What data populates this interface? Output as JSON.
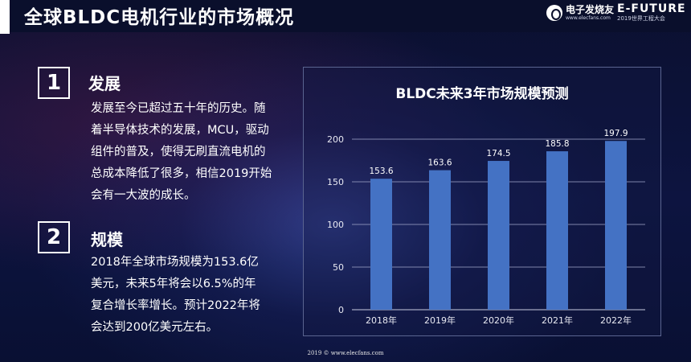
{
  "header": {
    "title": "全球BLDC电机行业的市场概况",
    "logo_left_cn": "电子发烧友",
    "logo_left_en": "www.elecfans.com",
    "logo_right_main": "E-FUTURE",
    "logo_right_sub": "2019世界工程大会"
  },
  "sections": [
    {
      "number": "1",
      "title": "发展",
      "lines": [
        "发展至今已超过五十年的历史。随",
        "着半导体技术的发展，MCU，驱动",
        "组件的普及，使得无刷直流电机的",
        "总成本降低了很多，相信2019开始",
        "会有一大波的成长。"
      ]
    },
    {
      "number": "2",
      "title": "规模",
      "lines": [
        "2018年全球市场规模为153.6亿",
        "美元，未来5年将会以6.5%的年",
        "复合增长率增长。预计2022年将",
        "会达到200亿美元左右。"
      ]
    }
  ],
  "chart_data": {
    "type": "bar",
    "title": "BLDC未来3年市场规模预测",
    "categories": [
      "2018年",
      "2019年",
      "2020年",
      "2021年",
      "2022年"
    ],
    "values": [
      153.6,
      163.6,
      174.5,
      185.8,
      197.9
    ],
    "value_labels": [
      "153.6",
      "163.6",
      "174.5",
      "185.8",
      "197.9"
    ],
    "yticks": [
      "0",
      "50",
      "100",
      "150",
      "200"
    ],
    "ytick_values": [
      0,
      50,
      100,
      150,
      200
    ],
    "ylim": [
      0,
      200
    ],
    "xlabel": "",
    "ylabel": "",
    "grid": true,
    "bar_color": "#4472c4"
  },
  "footer": {
    "text": "2019 © www.elecfans.com"
  }
}
